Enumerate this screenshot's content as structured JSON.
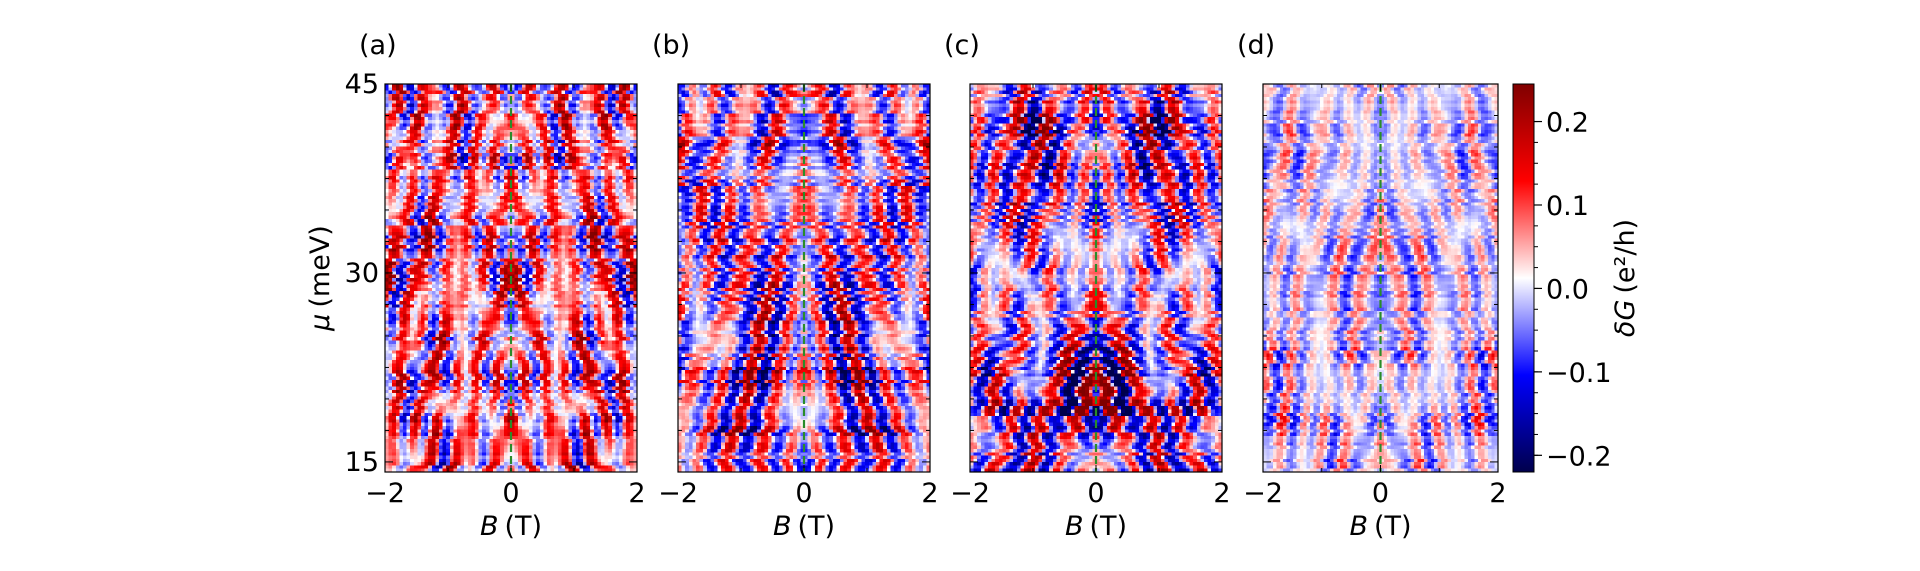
{
  "chart_data": [
    {
      "type": "heatmap",
      "panel_label": "(a)",
      "xlabel_symbol": "B",
      "xlabel_unit": "(T)",
      "ylabel_symbol": "μ",
      "ylabel_unit": "(meV)",
      "xlim": [
        -2,
        2
      ],
      "ylim": [
        14.2,
        45
      ],
      "x_ticks": [
        "−2",
        "0",
        "2"
      ],
      "y_ticks": [
        "15",
        "30",
        "45"
      ],
      "y_tick_values": [
        15,
        30,
        45
      ],
      "reference_line": {
        "x": 0,
        "style": "dashed",
        "color": "#2a8c2a"
      },
      "pattern": {
        "seed": 11,
        "redBias": 0.14,
        "blueBands": [
          21.5,
          18.0,
          39.0
        ],
        "amp": 0.85
      }
    },
    {
      "type": "heatmap",
      "panel_label": "(b)",
      "xlabel_symbol": "B",
      "xlabel_unit": "(T)",
      "xlim": [
        -2,
        2
      ],
      "ylim": [
        14.2,
        45
      ],
      "x_ticks": [
        "−2",
        "0",
        "2"
      ],
      "reference_line": {
        "x": 0,
        "style": "dashed",
        "color": "#2a8c2a"
      },
      "pattern": {
        "seed": 23,
        "redBias": 0.0,
        "blueBands": [
          22.0,
          17.5,
          40.0
        ],
        "amp": 0.85
      }
    },
    {
      "type": "heatmap",
      "panel_label": "(c)",
      "xlabel_symbol": "B",
      "xlabel_unit": "(T)",
      "xlim": [
        -2,
        2
      ],
      "ylim": [
        14.2,
        45
      ],
      "x_ticks": [
        "−2",
        "0",
        "2"
      ],
      "reference_line": {
        "x": 0,
        "style": "dashed",
        "color": "#2a8c2a"
      },
      "pattern": {
        "seed": 37,
        "redBias": -0.02,
        "blueBands": [
          22.0,
          19.0,
          41.5
        ],
        "amp": 0.85
      }
    },
    {
      "type": "heatmap",
      "panel_label": "(d)",
      "xlabel_symbol": "B",
      "xlabel_unit": "(T)",
      "xlim": [
        -2,
        2
      ],
      "ylim": [
        14.2,
        45
      ],
      "x_ticks": [
        "−2",
        "0",
        "2"
      ],
      "reference_line": {
        "x": 0,
        "style": "dashed",
        "color": "#2a8c2a"
      },
      "pattern": {
        "seed": 53,
        "redBias": -0.04,
        "blueBands": [
          23.5,
          18.0
        ],
        "amp": 0.55
      }
    }
  ],
  "colorbar": {
    "label_symbol": "δG",
    "label_unit": "(e²/h)",
    "vmin": -0.22,
    "vmax": 0.245,
    "colormap": "seismic",
    "ticks": [
      0.2,
      0.1,
      0.0,
      -0.1,
      -0.2
    ],
    "tick_labels": [
      "0.2",
      "0.1",
      "0.0",
      "−0.1",
      "−0.2"
    ],
    "colors": {
      "low": "#00004c",
      "mid_low": "#0000ff",
      "center": "#ffffff",
      "mid_high": "#ff0000",
      "high": "#800000"
    }
  }
}
